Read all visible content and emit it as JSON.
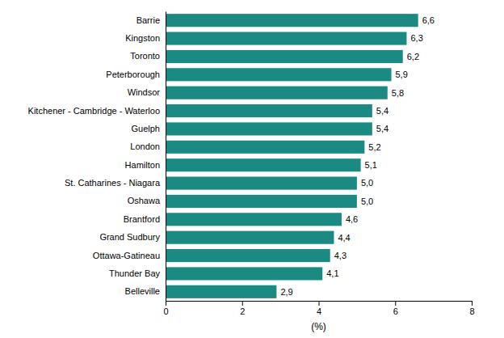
{
  "chart_data": {
    "type": "bar",
    "orientation": "horizontal",
    "categories": [
      "Belleville",
      "Thunder Bay",
      "Ottawa-Gatineau",
      "Grand Sudbury",
      "Brantford",
      "Oshawa",
      "St. Catharines - Niagara",
      "Hamilton",
      "London",
      "Guelph",
      "Kitchener - Cambridge - Waterloo",
      "Windsor",
      "Peterborough",
      "Toronto",
      "Kingston",
      "Barrie"
    ],
    "values": [
      2.9,
      4.1,
      4.3,
      4.4,
      4.6,
      5.0,
      5.0,
      5.1,
      5.2,
      5.4,
      5.4,
      5.8,
      5.9,
      6.2,
      6.3,
      6.6
    ],
    "value_labels": [
      "2,9",
      "4,1",
      "4,3",
      "4,4",
      "4,6",
      "5,0",
      "5,0",
      "5,1",
      "5,2",
      "5,4",
      "5,4",
      "5,8",
      "5,9",
      "6,2",
      "6,3",
      "6,6"
    ],
    "data_labels": true,
    "color": "#1a8a82",
    "xlabel": "(%)",
    "xlim": [
      0,
      8
    ],
    "xticks": [
      0,
      2,
      4,
      6,
      8
    ],
    "grid": false
  }
}
